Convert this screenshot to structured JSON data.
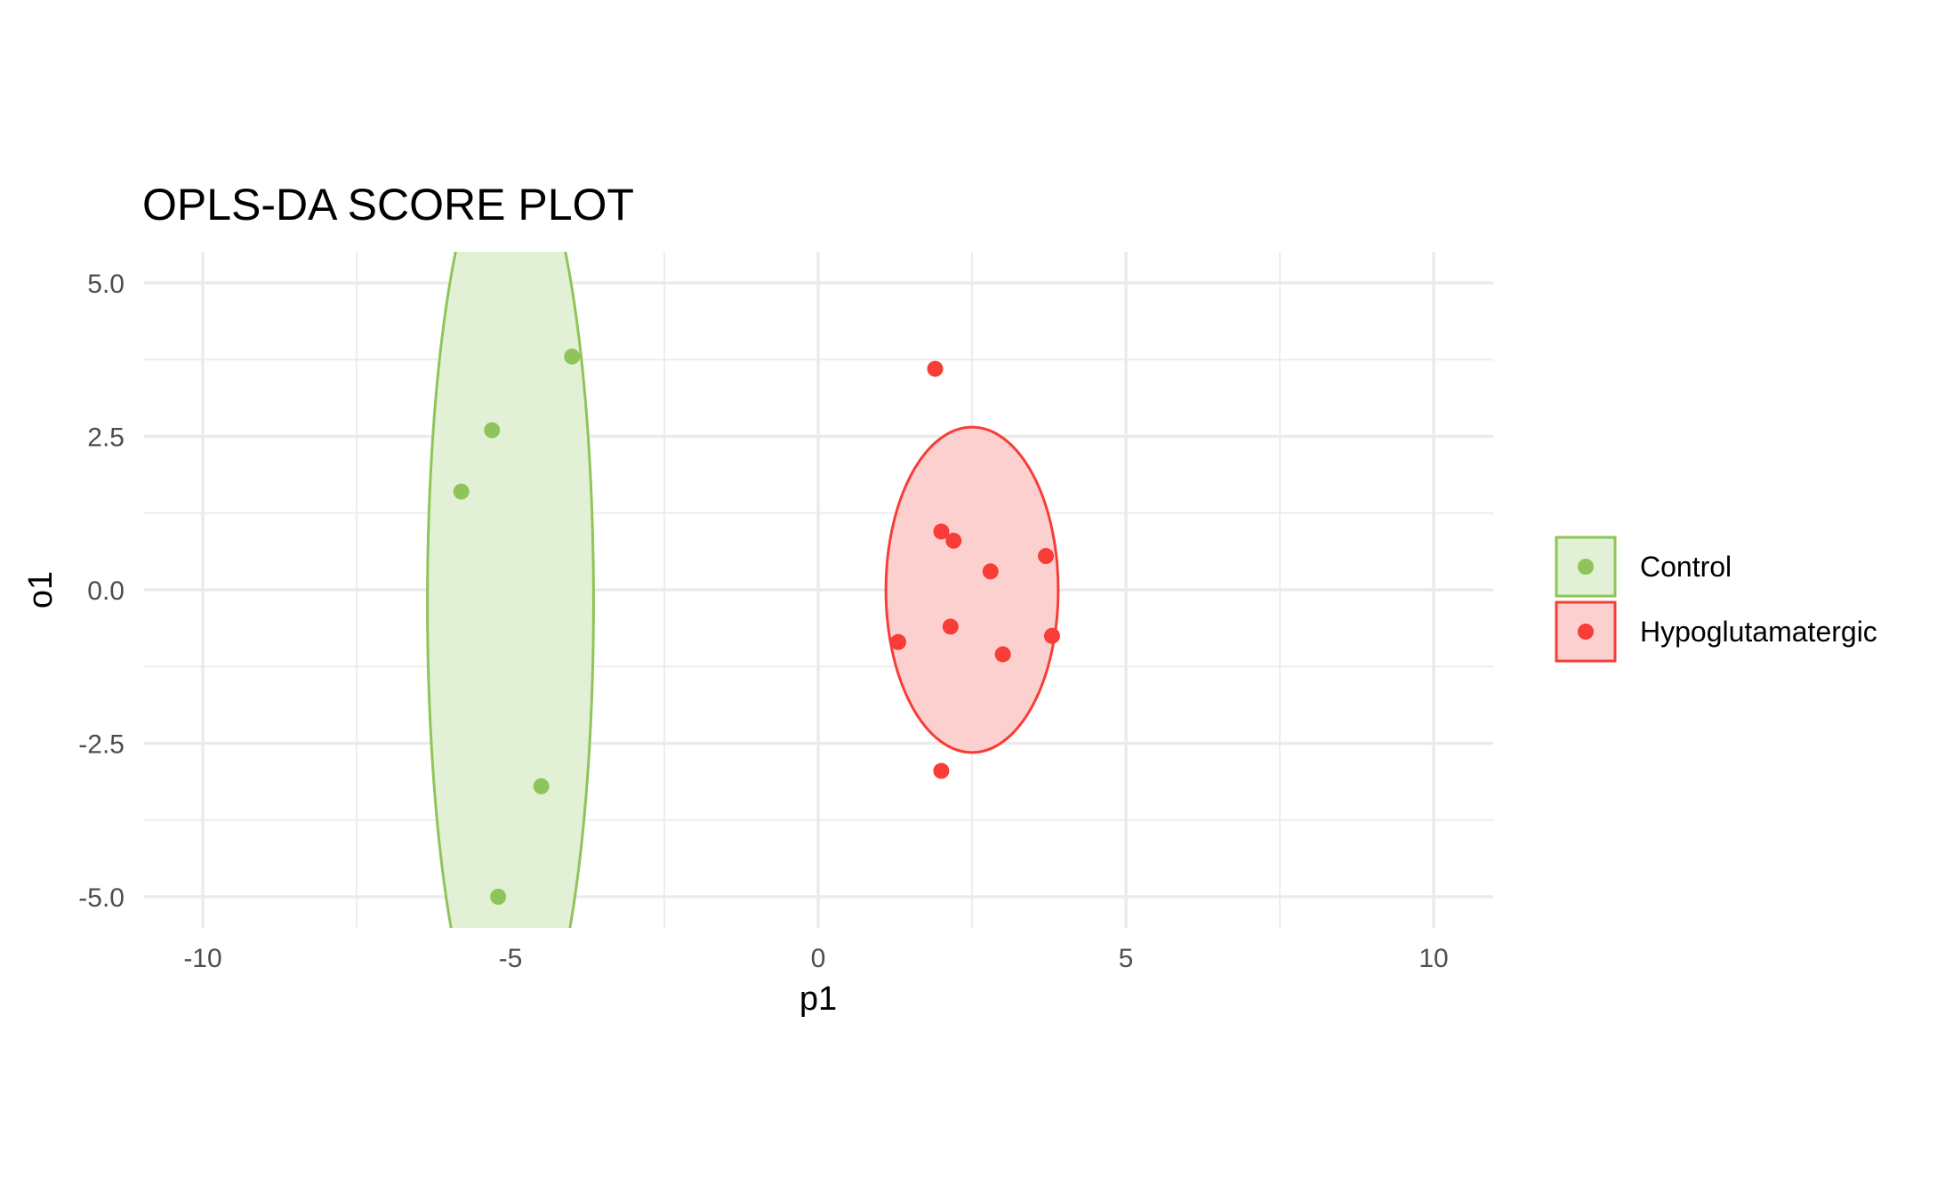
{
  "chart_data": {
    "type": "scatter",
    "title": "OPLS-DA SCORE PLOT",
    "xlabel": "p1",
    "ylabel": "o1",
    "xlim": [
      -11,
      11
    ],
    "ylim": [
      -5.5,
      5.5
    ],
    "x_ticks": [
      -10,
      -5,
      0,
      5,
      10
    ],
    "x_tick_labels": [
      "-10",
      "-5",
      "0",
      "5",
      "10"
    ],
    "y_ticks": [
      -5,
      -2.5,
      0,
      2.5,
      5
    ],
    "y_tick_labels": [
      "-5.0",
      "-2.5",
      "0.0",
      "2.5",
      "5.0"
    ],
    "grid": true,
    "legend_position": "right",
    "series": [
      {
        "name": "Control",
        "color": "#8fc45a",
        "fill": "#e2f0d6",
        "points": [
          {
            "x": -4.0,
            "y": 3.8
          },
          {
            "x": -5.3,
            "y": 2.6
          },
          {
            "x": -5.8,
            "y": 1.6
          },
          {
            "x": -4.5,
            "y": -3.2
          },
          {
            "x": -5.2,
            "y": -5.0
          }
        ],
        "ellipse": {
          "cx": -5.0,
          "cy": -0.2,
          "rx": 1.35,
          "ry": 7.6
        }
      },
      {
        "name": "Hypoglutamatergic",
        "color": "#f83c37",
        "fill": "#fdd0d0",
        "points": [
          {
            "x": 1.9,
            "y": 3.6
          },
          {
            "x": 2.0,
            "y": 0.95
          },
          {
            "x": 2.2,
            "y": 0.8
          },
          {
            "x": 2.8,
            "y": 0.3
          },
          {
            "x": 3.7,
            "y": 0.55
          },
          {
            "x": 1.3,
            "y": -0.85
          },
          {
            "x": 2.15,
            "y": -0.6
          },
          {
            "x": 3.0,
            "y": -1.05
          },
          {
            "x": 3.8,
            "y": -0.75
          },
          {
            "x": 2.0,
            "y": -2.95
          }
        ],
        "ellipse": {
          "cx": 2.5,
          "cy": 0.0,
          "rx": 1.4,
          "ry": 2.65
        }
      }
    ]
  }
}
